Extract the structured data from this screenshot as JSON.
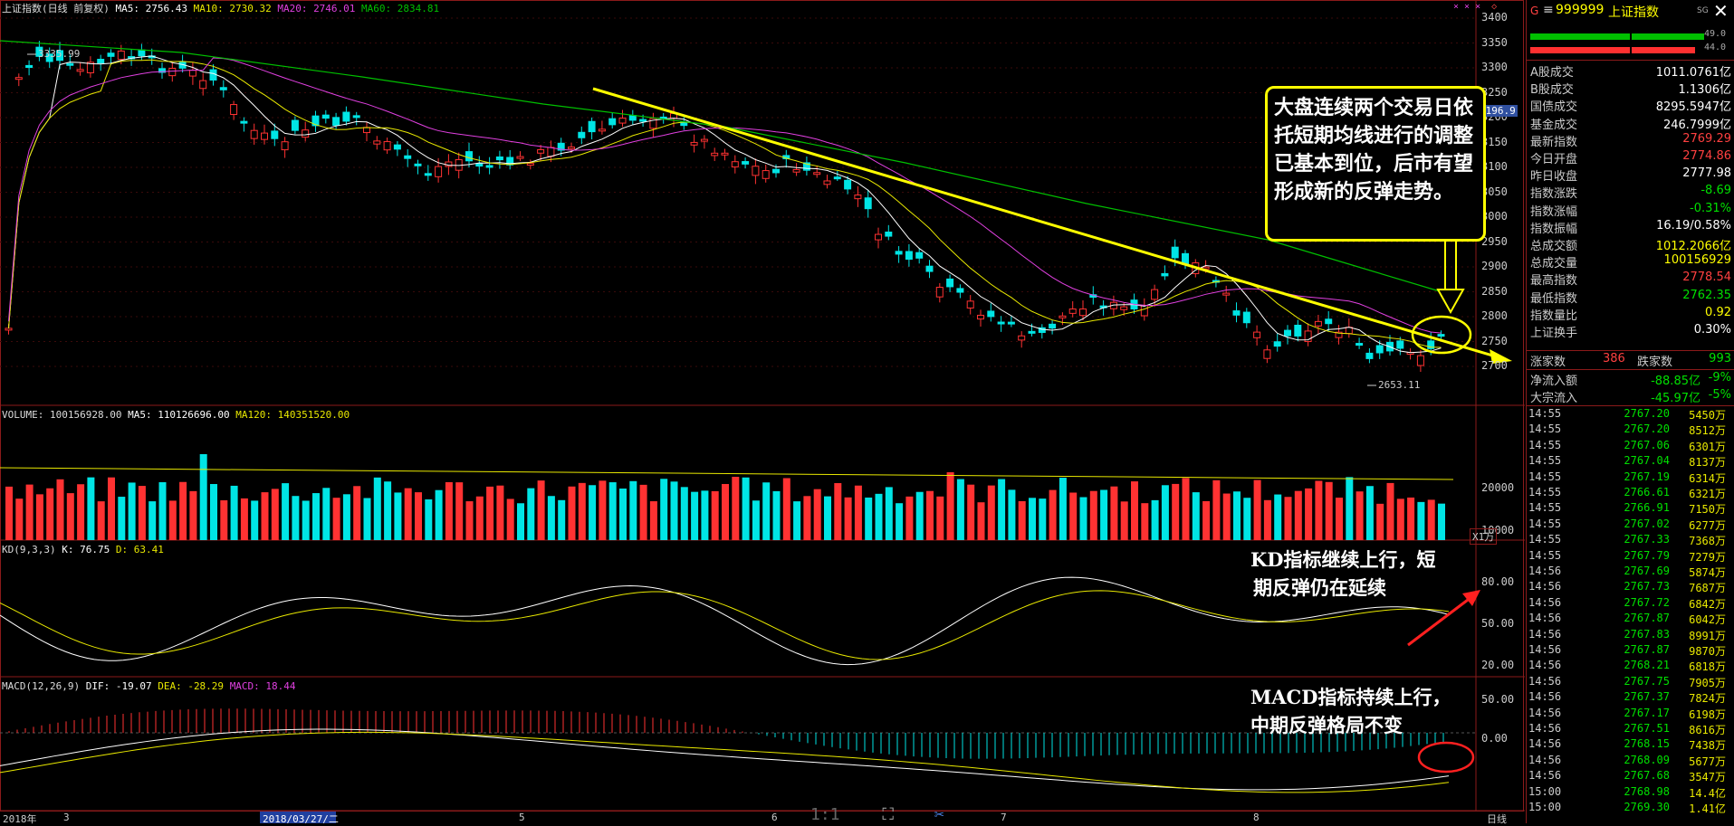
{
  "header": {
    "index_label": "上证指数(日线 前复权)",
    "ma5": "MA5: 2756.43",
    "ma10": "MA10: 2730.32",
    "ma20": "MA20: 2746.01",
    "ma60": "MA60: 2834.81"
  },
  "volume_header": {
    "volume": "VOLUME: 100156928.00",
    "ma5": "MA5: 110126696.00",
    "ma120": "MA120: 140351520.00"
  },
  "kd_header": {
    "kd": "KD(9,3,3)",
    "k": "K: 76.75",
    "d": "D: 63.41"
  },
  "macd_header": {
    "macd": "MACD(12,26,9)",
    "dif": "DIF: -19.07",
    "dea": "DEA: -28.29",
    "macd_val": "MACD: 18.44"
  },
  "annotations": {
    "high": "3335.99",
    "low": "2653.11",
    "main_callout": "大盘连续两个交易日依托短期均线进行的调整已基本到位，后市有望形成新的反弹走势。",
    "kd_callout_1": "KD指标继续上行，短",
    "kd_callout_2": "期反弹仍在延续",
    "macd_callout_1": "MACD指标持续上行，",
    "macd_callout_2": "中期反弹格局不变",
    "price_tag": "3196.9"
  },
  "price_axis": [
    "3400",
    "3350",
    "3300",
    "3250",
    "3200",
    "3150",
    "3100",
    "3050",
    "3000",
    "2950",
    "2900",
    "2850",
    "2800",
    "2750",
    "2700"
  ],
  "vol_axis": [
    "20000",
    "10000"
  ],
  "vol_unit": "X1万",
  "kd_axis": [
    "80.00",
    "50.00",
    "20.00"
  ],
  "macd_axis": [
    "50.00",
    "0.00"
  ],
  "date_axis": {
    "year": "2018年",
    "m3": "3",
    "cursor_date": "2018/03/27/二",
    "m5": "5",
    "m6": "6",
    "m7": "7",
    "m8": "8",
    "period": "日线"
  },
  "bottom_tools": {
    "ratio": "1:1"
  },
  "colors": {
    "up": "#ff3232",
    "down": "#00e5e5",
    "ma5": "#ffffff",
    "ma10": "#e8e800",
    "ma20": "#e040e0",
    "ma60": "#00c000",
    "trend": "#ffff00"
  },
  "quote_panel": {
    "code": "999999",
    "name": "上证指数",
    "buy_pct": "49.0",
    "sell_pct": "44.0",
    "rows": [
      {
        "k": "A股成交",
        "v": "1011.0761亿",
        "c": "#ffffff"
      },
      {
        "k": "B股成交",
        "v": "1.1306亿",
        "c": "#ffffff"
      },
      {
        "k": "国债成交",
        "v": "8295.5947亿",
        "c": "#ffffff"
      },
      {
        "k": "基金成交",
        "v": "246.7999亿",
        "c": "#ffffff"
      },
      {
        "k": "最新指数",
        "v": "2769.29",
        "c": "#ff4040"
      },
      {
        "k": "今日开盘",
        "v": "2774.86",
        "c": "#ff4040"
      },
      {
        "k": "昨日收盘",
        "v": "2777.98",
        "c": "#ffffff"
      },
      {
        "k": "指数涨跌",
        "v": "-8.69",
        "c": "#00e000"
      },
      {
        "k": "指数涨幅",
        "v": "-0.31%",
        "c": "#00e000"
      },
      {
        "k": "指数振幅",
        "v": "16.19/0.58%",
        "c": "#ffffff"
      },
      {
        "k": "总成交额",
        "v": "1012.2066亿",
        "c": "#ffff00"
      },
      {
        "k": "总成交量",
        "v": "100156929",
        "c": "#ffff00"
      },
      {
        "k": "最高指数",
        "v": "2778.54",
        "c": "#ff4040"
      },
      {
        "k": "最低指数",
        "v": "2762.35",
        "c": "#00e000"
      },
      {
        "k": "指数量比",
        "v": "0.92",
        "c": "#ffff00"
      },
      {
        "k": "上证换手",
        "v": "0.30%",
        "c": "#ffffff"
      }
    ],
    "up_label": "涨家数",
    "up_count": "386",
    "down_label": "跌家数",
    "down_count": "993",
    "inflow_label": "净流入额",
    "inflow": "-88.85亿",
    "inflow_pct": "-9%",
    "block_label": "大宗流入",
    "block": "-45.97亿",
    "block_pct": "-5%"
  },
  "ticks": [
    {
      "t": "14:55",
      "p": "2767.20",
      "q": "5450万"
    },
    {
      "t": "14:55",
      "p": "2767.20",
      "q": "8512万"
    },
    {
      "t": "14:55",
      "p": "2767.06",
      "q": "6301万"
    },
    {
      "t": "14:55",
      "p": "2767.04",
      "q": "8137万"
    },
    {
      "t": "14:55",
      "p": "2767.19",
      "q": "6314万"
    },
    {
      "t": "14:55",
      "p": "2766.61",
      "q": "6321万"
    },
    {
      "t": "14:55",
      "p": "2766.91",
      "q": "7150万"
    },
    {
      "t": "14:55",
      "p": "2767.02",
      "q": "6277万"
    },
    {
      "t": "14:55",
      "p": "2767.33",
      "q": "7368万"
    },
    {
      "t": "14:55",
      "p": "2767.79",
      "q": "7279万"
    },
    {
      "t": "14:56",
      "p": "2767.69",
      "q": "5874万"
    },
    {
      "t": "14:56",
      "p": "2767.73",
      "q": "7687万"
    },
    {
      "t": "14:56",
      "p": "2767.72",
      "q": "6842万"
    },
    {
      "t": "14:56",
      "p": "2767.87",
      "q": "6042万"
    },
    {
      "t": "14:56",
      "p": "2767.83",
      "q": "8991万"
    },
    {
      "t": "14:56",
      "p": "2767.87",
      "q": "9870万"
    },
    {
      "t": "14:56",
      "p": "2768.21",
      "q": "6818万"
    },
    {
      "t": "14:56",
      "p": "2767.75",
      "q": "7905万"
    },
    {
      "t": "14:56",
      "p": "2767.37",
      "q": "7824万"
    },
    {
      "t": "14:56",
      "p": "2767.17",
      "q": "6198万"
    },
    {
      "t": "14:56",
      "p": "2767.51",
      "q": "8616万"
    },
    {
      "t": "14:56",
      "p": "2768.15",
      "q": "7438万"
    },
    {
      "t": "14:56",
      "p": "2768.09",
      "q": "5677万"
    },
    {
      "t": "14:56",
      "p": "2767.68",
      "q": "3547万"
    },
    {
      "t": "15:00",
      "p": "2768.98",
      "q": "14.4亿"
    },
    {
      "t": "15:00",
      "p": "2769.30",
      "q": "1.41亿"
    }
  ]
}
